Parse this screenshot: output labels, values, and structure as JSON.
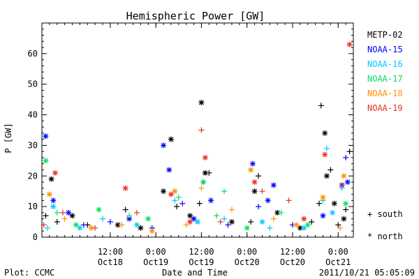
{
  "chart_data": {
    "type": "scatter",
    "title": "Hemispheric Power [GW]",
    "ylabel": "P [GW]",
    "xlabel": "Date and Time",
    "ylim": [
      0,
      70
    ],
    "yticks": [
      0,
      10,
      20,
      30,
      40,
      50,
      60
    ],
    "xlim": [
      "2011-10-17 18:00",
      "2011-10-21 04:00"
    ],
    "xticks": [
      {
        "time": "2011-10-18 12:00",
        "top": "12:00",
        "bottom": "Oct18"
      },
      {
        "time": "2011-10-19 00:00",
        "top": "0:00",
        "bottom": "Oct19"
      },
      {
        "time": "2011-10-19 12:00",
        "top": "12:00",
        "bottom": "Oct19"
      },
      {
        "time": "2011-10-20 00:00",
        "top": "0:00",
        "bottom": "Oct20"
      },
      {
        "time": "2011-10-20 12:00",
        "top": "12:00",
        "bottom": "Oct20"
      },
      {
        "time": "2011-10-21 00:00",
        "top": "0:00",
        "bottom": "Oct21"
      }
    ],
    "marker_legend": {
      "south": "+ south",
      "north": "* north"
    },
    "series": [
      {
        "name": "METP-02",
        "color": "#000000",
        "points": [
          [
            "2011-10-17 19:00",
            7,
            "+"
          ],
          [
            "2011-10-17 20:30",
            19,
            "*"
          ],
          [
            "2011-10-17 22:00",
            5,
            "+"
          ],
          [
            "2011-10-18 02:00",
            7,
            "*"
          ],
          [
            "2011-10-18 06:00",
            4,
            "+"
          ],
          [
            "2011-10-18 14:00",
            4,
            "*"
          ],
          [
            "2011-10-18 16:00",
            9,
            "+"
          ],
          [
            "2011-10-18 20:00",
            3,
            "*"
          ],
          [
            "2011-10-19 02:00",
            15,
            "*"
          ],
          [
            "2011-10-19 04:00",
            32,
            "*"
          ],
          [
            "2011-10-19 05:30",
            10,
            "+"
          ],
          [
            "2011-10-19 09:00",
            7,
            "*"
          ],
          [
            "2011-10-19 11:30",
            11,
            "+"
          ],
          [
            "2011-10-19 12:00",
            44,
            "*"
          ],
          [
            "2011-10-19 13:00",
            21,
            "*"
          ],
          [
            "2011-10-19 14:00",
            21,
            "+"
          ],
          [
            "2011-10-19 20:00",
            5,
            "*"
          ],
          [
            "2011-10-20 01:00",
            5,
            "+"
          ],
          [
            "2011-10-20 02:00",
            15,
            "*"
          ],
          [
            "2011-10-20 03:00",
            20,
            "+"
          ],
          [
            "2011-10-20 08:00",
            8,
            "*"
          ],
          [
            "2011-10-20 14:00",
            3,
            "*"
          ],
          [
            "2011-10-20 17:00",
            5,
            "+"
          ],
          [
            "2011-10-20 19:00",
            11,
            "+"
          ],
          [
            "2011-10-20 19:30",
            43,
            "+"
          ],
          [
            "2011-10-20 20:30",
            34,
            "*"
          ],
          [
            "2011-10-20 21:00",
            20,
            "*"
          ],
          [
            "2011-10-20 22:00",
            22,
            "+"
          ],
          [
            "2011-10-20 23:00",
            11,
            "*"
          ],
          [
            "2011-10-21 00:00",
            4,
            "+"
          ],
          [
            "2011-10-21 01:30",
            6,
            "*"
          ],
          [
            "2011-10-21 02:00",
            9,
            "+"
          ],
          [
            "2011-10-21 03:00",
            28,
            "+"
          ]
        ]
      },
      {
        "name": "NOAA-15",
        "color": "#0000ff",
        "points": [
          [
            "2011-10-17 19:00",
            33,
            "*"
          ],
          [
            "2011-10-17 21:00",
            12,
            "*"
          ],
          [
            "2011-10-18 01:00",
            8,
            "*"
          ],
          [
            "2011-10-18 05:00",
            4,
            "+"
          ],
          [
            "2011-10-18 12:00",
            5,
            "+"
          ],
          [
            "2011-10-18 17:00",
            6,
            "*"
          ],
          [
            "2011-10-18 23:00",
            3,
            "+"
          ],
          [
            "2011-10-19 02:00",
            30,
            "*"
          ],
          [
            "2011-10-19 03:30",
            22,
            "*"
          ],
          [
            "2011-10-19 07:00",
            11,
            "+"
          ],
          [
            "2011-10-19 10:00",
            6,
            "*"
          ],
          [
            "2011-10-19 12:30",
            18,
            "+"
          ],
          [
            "2011-10-19 14:30",
            12,
            "*"
          ],
          [
            "2011-10-19 19:00",
            4,
            "+"
          ],
          [
            "2011-10-20 01:30",
            24,
            "*"
          ],
          [
            "2011-10-20 03:00",
            10,
            "+"
          ],
          [
            "2011-10-20 05:30",
            12,
            "*"
          ],
          [
            "2011-10-20 07:00",
            17,
            "*"
          ],
          [
            "2011-10-20 12:00",
            4,
            "+"
          ],
          [
            "2011-10-20 20:00",
            7,
            "*"
          ],
          [
            "2011-10-21 01:00",
            17,
            "*"
          ],
          [
            "2011-10-21 02:00",
            26,
            "+"
          ],
          [
            "2011-10-21 02:30",
            18,
            "*"
          ]
        ]
      },
      {
        "name": "NOAA-16",
        "color": "#00c8ff",
        "points": [
          [
            "2011-10-17 19:30",
            3,
            "+"
          ],
          [
            "2011-10-17 21:00",
            10,
            "*"
          ],
          [
            "2011-10-18 04:00",
            3,
            "*"
          ],
          [
            "2011-10-18 10:00",
            6,
            "+"
          ],
          [
            "2011-10-18 19:00",
            4,
            "*"
          ],
          [
            "2011-10-19 05:00",
            12,
            "+"
          ],
          [
            "2011-10-19 11:00",
            5,
            "*"
          ],
          [
            "2011-10-19 18:00",
            6,
            "+"
          ],
          [
            "2011-10-20 04:00",
            5,
            "*"
          ],
          [
            "2011-10-20 06:00",
            3,
            "+"
          ],
          [
            "2011-10-20 15:00",
            3,
            "*"
          ],
          [
            "2011-10-20 21:00",
            29,
            "+"
          ],
          [
            "2011-10-20 22:30",
            8,
            "*"
          ],
          [
            "2011-10-21 01:00",
            16,
            "+"
          ]
        ]
      },
      {
        "name": "NOAA-17",
        "color": "#00e060",
        "points": [
          [
            "2011-10-17 19:00",
            25,
            "*"
          ],
          [
            "2011-10-17 22:00",
            8,
            "+"
          ],
          [
            "2011-10-18 03:00",
            4,
            "*"
          ],
          [
            "2011-10-18 09:00",
            9,
            "*"
          ],
          [
            "2011-10-18 17:00",
            7,
            "+"
          ],
          [
            "2011-10-18 22:00",
            6,
            "*"
          ],
          [
            "2011-10-19 06:00",
            13,
            "+"
          ],
          [
            "2011-10-19 12:30",
            18,
            "*"
          ],
          [
            "2011-10-19 16:00",
            7,
            "+"
          ],
          [
            "2011-10-19 18:00",
            15,
            "+"
          ],
          [
            "2011-10-20 00:00",
            3,
            "*"
          ],
          [
            "2011-10-20 09:00",
            8,
            "+"
          ],
          [
            "2011-10-20 16:00",
            4,
            "*"
          ],
          [
            "2011-10-20 20:00",
            12,
            "+"
          ],
          [
            "2011-10-21 02:00",
            11,
            "*"
          ]
        ]
      },
      {
        "name": "NOAA-18",
        "color": "#ff9000",
        "points": [
          [
            "2011-10-17 20:00",
            14,
            "*"
          ],
          [
            "2011-10-18 00:00",
            6,
            "+"
          ],
          [
            "2011-10-18 07:00",
            3,
            "*"
          ],
          [
            "2011-10-18 15:00",
            4,
            "+"
          ],
          [
            "2011-10-18 23:00",
            2,
            "*"
          ],
          [
            "2011-10-19 05:00",
            15,
            "*"
          ],
          [
            "2011-10-19 08:00",
            4,
            "+"
          ],
          [
            "2011-10-19 12:00",
            16,
            "+"
          ],
          [
            "2011-10-19 20:00",
            9,
            "+"
          ],
          [
            "2011-10-20 01:00",
            22,
            "*"
          ],
          [
            "2011-10-20 07:00",
            6,
            "+"
          ],
          [
            "2011-10-20 13:00",
            4,
            "*"
          ],
          [
            "2011-10-20 20:00",
            13,
            "*"
          ],
          [
            "2011-10-21 00:30",
            3,
            "+"
          ],
          [
            "2011-10-21 01:30",
            20,
            "*"
          ]
        ]
      },
      {
        "name": "NOAA-19",
        "color": "#e83020",
        "points": [
          [
            "2011-10-17 18:30",
            4,
            "+"
          ],
          [
            "2011-10-17 21:30",
            21,
            "*"
          ],
          [
            "2011-10-17 23:30",
            8,
            "+"
          ],
          [
            "2011-10-18 08:00",
            3,
            "+"
          ],
          [
            "2011-10-18 16:00",
            16,
            "*"
          ],
          [
            "2011-10-18 19:00",
            8,
            "+"
          ],
          [
            "2011-10-19 04:00",
            14,
            "*"
          ],
          [
            "2011-10-19 09:00",
            5,
            "*"
          ],
          [
            "2011-10-19 12:00",
            35,
            "+"
          ],
          [
            "2011-10-19 13:00",
            26,
            "*"
          ],
          [
            "2011-10-19 17:00",
            5,
            "+"
          ],
          [
            "2011-10-20 02:00",
            18,
            "*"
          ],
          [
            "2011-10-20 04:00",
            15,
            "+"
          ],
          [
            "2011-10-20 11:00",
            12,
            "+"
          ],
          [
            "2011-10-20 15:00",
            6,
            "*"
          ],
          [
            "2011-10-20 20:30",
            27,
            "*"
          ],
          [
            "2011-10-21 01:00",
            17,
            "+"
          ],
          [
            "2011-10-21 03:00",
            63,
            "*"
          ]
        ]
      }
    ]
  },
  "footer": {
    "left": "Plot: CCMC",
    "right": "2011/10/21 05:05:09"
  }
}
